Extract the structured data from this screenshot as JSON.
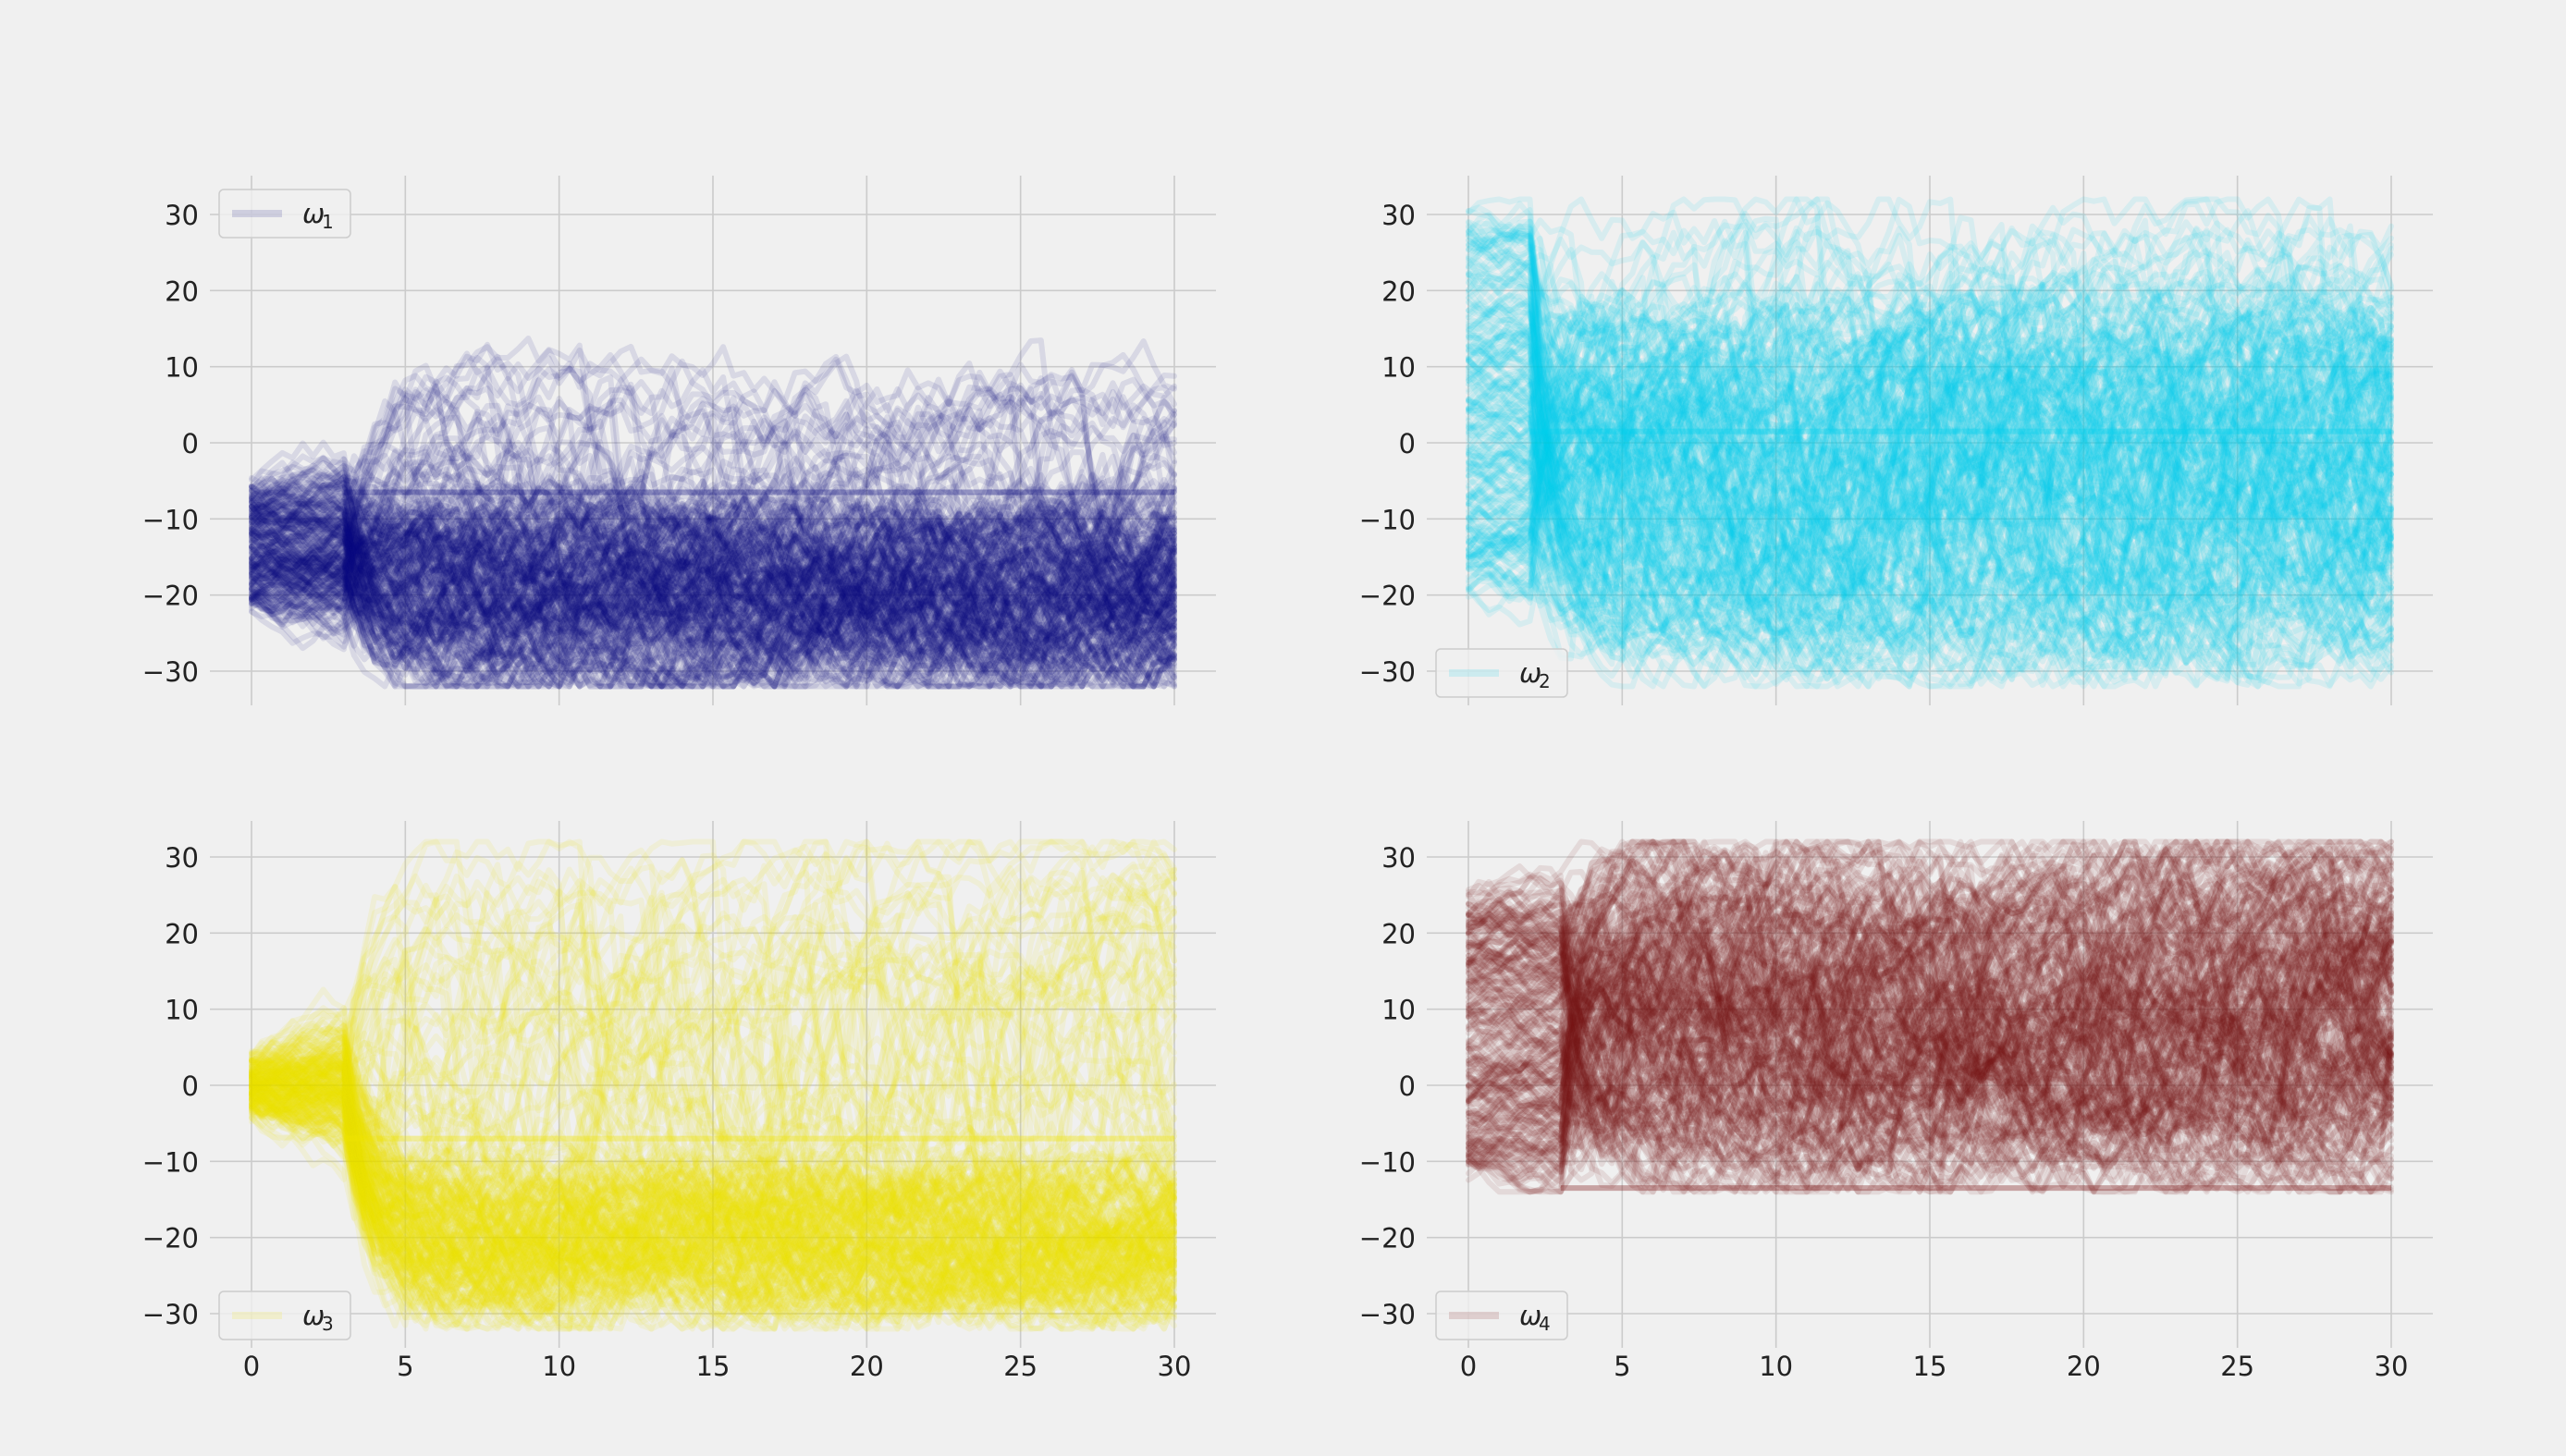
{
  "figure": {
    "background": "#f0f0f0",
    "grid_color": "#cbcbcb",
    "tick_color": "#222222"
  },
  "chart_data": [
    {
      "type": "line",
      "title": "",
      "xlabel": "",
      "ylabel": "",
      "xlim": [
        0,
        30
      ],
      "ylim": [
        -34,
        35
      ],
      "xticks": [
        "0",
        "5",
        "10",
        "15",
        "20",
        "25",
        "30"
      ],
      "yticks": [
        "30",
        "20",
        "10",
        "0",
        "−10",
        "−20",
        "−30"
      ],
      "show_xticklabels": false,
      "grid": true,
      "legend": {
        "label": "ω",
        "subscript": "1",
        "location": "upper-left"
      },
      "series": [
        {
          "name": "ω1",
          "color": "#0d0d82",
          "line_alpha": 0.1,
          "trace_count": 240,
          "seed": 11,
          "start_range": [
            -21,
            -6
          ],
          "settle_at": 3,
          "band": [
            -32,
            10
          ],
          "band_dense": [
            -32,
            -8
          ],
          "saturation": [
            -32,
            32
          ],
          "plateau_y": -6.5
        }
      ]
    },
    {
      "type": "line",
      "title": "",
      "xlabel": "",
      "ylabel": "",
      "xlim": [
        0,
        30
      ],
      "ylim": [
        -34,
        35
      ],
      "xticks": [
        "0",
        "5",
        "10",
        "15",
        "20",
        "25",
        "30"
      ],
      "yticks": [
        "30",
        "20",
        "10",
        "0",
        "−10",
        "−20",
        "−30"
      ],
      "show_xticklabels": false,
      "grid": true,
      "legend": {
        "label": "ω",
        "subscript": "2",
        "location": "lower-left"
      },
      "series": [
        {
          "name": "ω2",
          "color": "#00d2ee",
          "line_alpha": 0.1,
          "trace_count": 240,
          "seed": 23,
          "start_range": [
            -20,
            30
          ],
          "settle_at": 2,
          "band": [
            -32,
            32
          ],
          "band_dense": [
            -30,
            20
          ],
          "saturation": [
            -32,
            32
          ],
          "plateau_y": 1.5
        }
      ]
    },
    {
      "type": "line",
      "title": "",
      "xlabel": "",
      "ylabel": "",
      "xlim": [
        0,
        30
      ],
      "ylim": [
        -34,
        35
      ],
      "xticks": [
        "0",
        "5",
        "10",
        "15",
        "20",
        "25",
        "30"
      ],
      "yticks": [
        "30",
        "20",
        "10",
        "0",
        "−10",
        "−20",
        "−30"
      ],
      "show_xticklabels": true,
      "grid": true,
      "legend": {
        "label": "ω",
        "subscript": "3",
        "location": "lower-left"
      },
      "series": [
        {
          "name": "ω3",
          "color": "#f0e400",
          "line_alpha": 0.1,
          "trace_count": 240,
          "seed": 37,
          "start_range": [
            -3,
            3
          ],
          "settle_at": 3,
          "band": [
            -32,
            32
          ],
          "band_dense": [
            -30,
            -10
          ],
          "saturation": [
            -32,
            32
          ],
          "plateau_y": -7
        }
      ]
    },
    {
      "type": "line",
      "title": "",
      "xlabel": "",
      "ylabel": "",
      "xlim": [
        0,
        30
      ],
      "ylim": [
        -34,
        35
      ],
      "xticks": [
        "0",
        "5",
        "10",
        "15",
        "20",
        "25",
        "30"
      ],
      "yticks": [
        "30",
        "20",
        "10",
        "0",
        "−10",
        "−20",
        "−30"
      ],
      "show_xticklabels": true,
      "grid": true,
      "legend": {
        "label": "ω",
        "subscript": "4",
        "location": "lower-left"
      },
      "series": [
        {
          "name": "ω4",
          "color": "#7a1010",
          "line_alpha": 0.1,
          "trace_count": 240,
          "seed": 53,
          "start_range": [
            -12,
            25
          ],
          "settle_at": 3,
          "band": [
            -14,
            32
          ],
          "band_dense": [
            -13,
            32
          ],
          "saturation": [
            -14,
            32
          ],
          "plateau_y": -13.5
        }
      ]
    }
  ]
}
